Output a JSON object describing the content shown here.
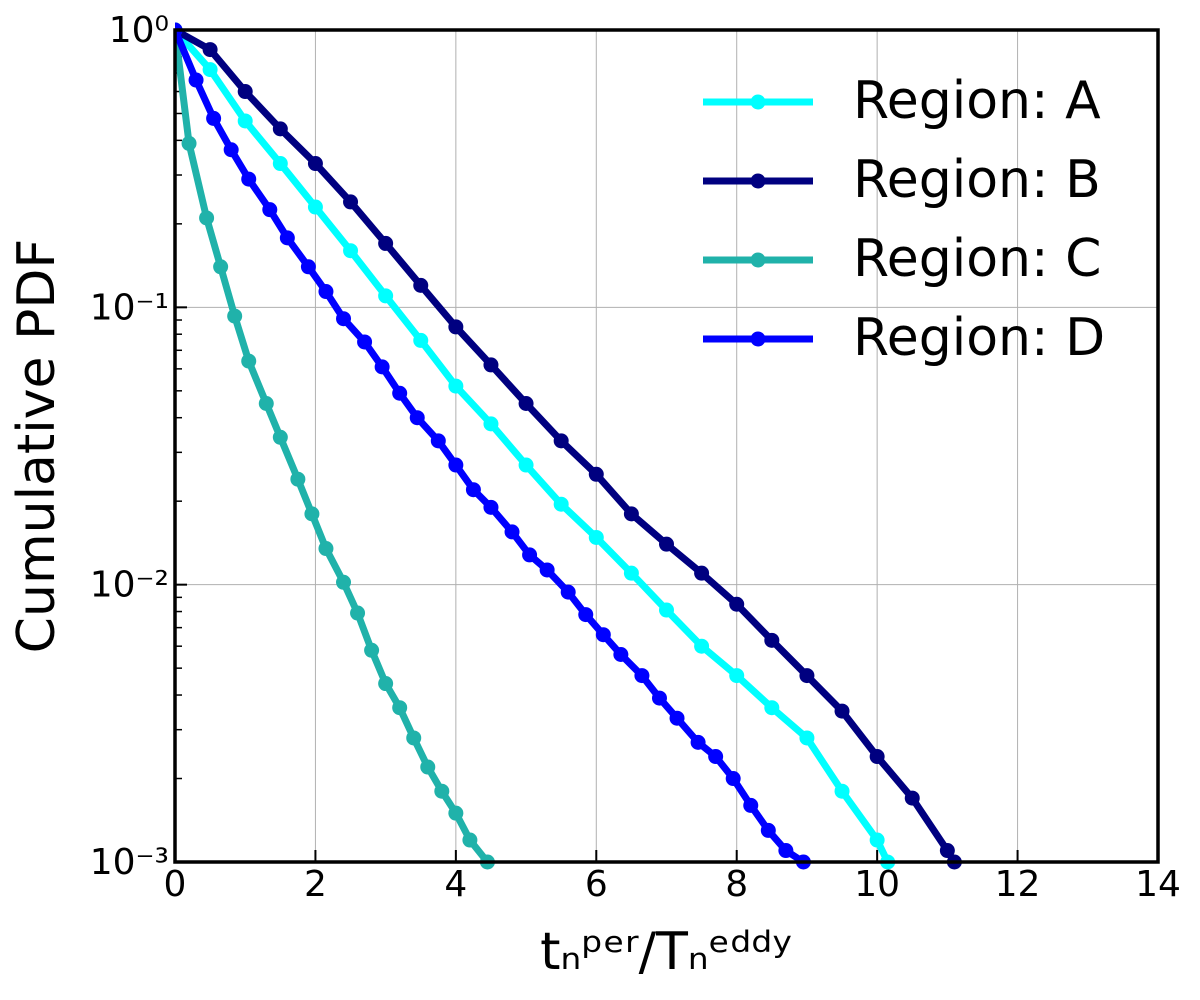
{
  "chart_data": {
    "type": "line",
    "ylabel": "Cumulative PDF",
    "xlabel": "tₙᵖᵉʳ/Tₙᵉᵈᵈʸ",
    "xlim": [
      0,
      14
    ],
    "xticks": [
      0,
      2,
      4,
      6,
      8,
      10,
      12,
      14
    ],
    "ylim": [
      0.001,
      1
    ],
    "yscale": "log",
    "yticks": [
      {
        "value": 1,
        "label": "10⁰"
      },
      {
        "value": 0.1,
        "label": "10⁻¹"
      },
      {
        "value": 0.01,
        "label": "10⁻²"
      },
      {
        "value": 0.001,
        "label": "10⁻³"
      }
    ],
    "yminorticks": [
      0.002,
      0.003,
      0.004,
      0.005,
      0.006,
      0.007,
      0.008,
      0.009,
      0.02,
      0.03,
      0.04,
      0.05,
      0.06,
      0.07,
      0.08,
      0.09,
      0.2,
      0.3,
      0.4,
      0.5,
      0.6,
      0.7,
      0.8,
      0.9
    ],
    "grid": true,
    "legend": "upper right",
    "series": [
      {
        "name": "Region: A",
        "color": "#00ffff",
        "x": [
          0,
          0.5,
          1,
          1.5,
          2,
          2.5,
          3,
          3.5,
          4,
          4.5,
          5,
          5.5,
          6,
          6.5,
          7,
          7.5,
          8,
          8.5,
          9,
          9.5,
          10,
          10.15
        ],
        "values": [
          1,
          0.72,
          0.47,
          0.33,
          0.23,
          0.16,
          0.11,
          0.076,
          0.052,
          0.038,
          0.027,
          0.0195,
          0.0148,
          0.011,
          0.0081,
          0.006,
          0.0047,
          0.0036,
          0.0028,
          0.0018,
          0.0012,
          0.001
        ]
      },
      {
        "name": "Region: B",
        "color": "#000080",
        "x": [
          0,
          0.5,
          1,
          1.5,
          2,
          2.5,
          3,
          3.5,
          4,
          4.5,
          5,
          5.5,
          6,
          6.5,
          7,
          7.5,
          8,
          8.5,
          9,
          9.5,
          10,
          10.5,
          11,
          11.1
        ],
        "values": [
          1,
          0.85,
          0.6,
          0.44,
          0.33,
          0.24,
          0.17,
          0.12,
          0.085,
          0.062,
          0.045,
          0.033,
          0.025,
          0.018,
          0.014,
          0.011,
          0.0085,
          0.0063,
          0.0047,
          0.0035,
          0.0024,
          0.0017,
          0.0011,
          0.001
        ]
      },
      {
        "name": "Region: C",
        "color": "#20b2aa",
        "x": [
          0,
          0.2,
          0.45,
          0.65,
          0.85,
          1.05,
          1.3,
          1.5,
          1.75,
          1.95,
          2.15,
          2.4,
          2.6,
          2.8,
          3,
          3.2,
          3.4,
          3.6,
          3.8,
          4,
          4.2,
          4.45
        ],
        "values": [
          1,
          0.39,
          0.21,
          0.14,
          0.093,
          0.064,
          0.045,
          0.034,
          0.024,
          0.018,
          0.0135,
          0.0102,
          0.0079,
          0.0058,
          0.0044,
          0.0036,
          0.0028,
          0.0022,
          0.0018,
          0.0015,
          0.0012,
          0.001
        ]
      },
      {
        "name": "Region: D",
        "color": "#0000ff",
        "x": [
          0,
          0.3,
          0.55,
          0.8,
          1.05,
          1.35,
          1.6,
          1.9,
          2.15,
          2.4,
          2.7,
          2.95,
          3.2,
          3.45,
          3.75,
          4,
          4.25,
          4.5,
          4.8,
          5.05,
          5.3,
          5.6,
          5.85,
          6.1,
          6.35,
          6.65,
          6.9,
          7.15,
          7.45,
          7.7,
          7.95,
          8.2,
          8.45,
          8.7,
          8.95
        ],
        "values": [
          1,
          0.66,
          0.48,
          0.37,
          0.29,
          0.225,
          0.178,
          0.14,
          0.114,
          0.091,
          0.075,
          0.061,
          0.049,
          0.04,
          0.033,
          0.027,
          0.022,
          0.019,
          0.0155,
          0.0128,
          0.0113,
          0.0094,
          0.0078,
          0.0066,
          0.0056,
          0.0047,
          0.0039,
          0.0033,
          0.0027,
          0.0024,
          0.002,
          0.0016,
          0.0013,
          0.0011,
          0.001
        ]
      }
    ]
  }
}
